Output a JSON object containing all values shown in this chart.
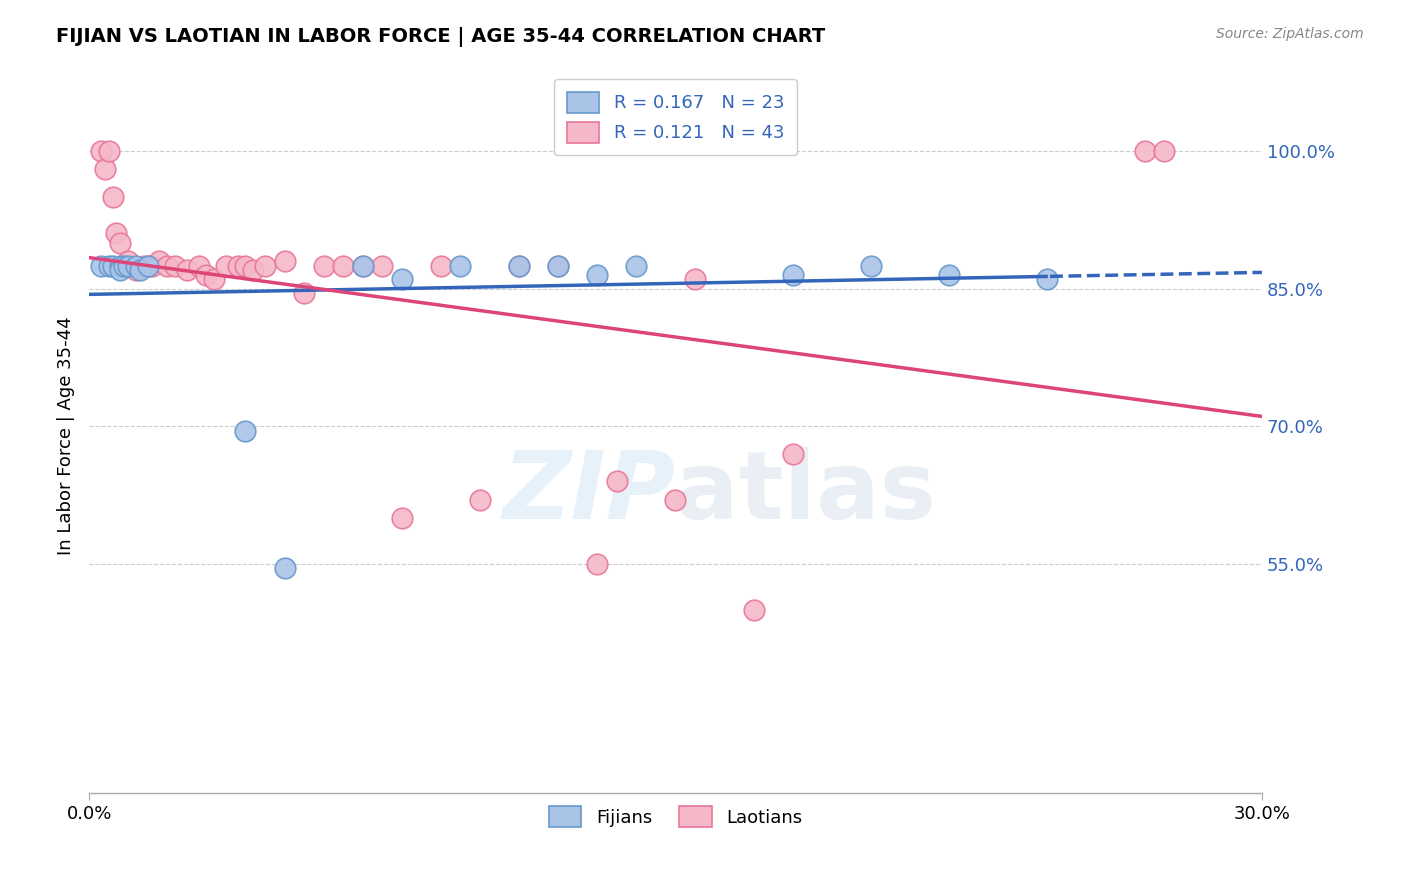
{
  "title": "FIJIAN VS LAOTIAN IN LABOR FORCE | AGE 35-44 CORRELATION CHART",
  "source": "Source: ZipAtlas.com",
  "ylabel": "In Labor Force | Age 35-44",
  "x_min": 0.0,
  "x_max": 0.3,
  "y_min": 0.3,
  "y_max": 1.08,
  "x_tick_labels": [
    "0.0%",
    "30.0%"
  ],
  "x_tick_vals": [
    0.0,
    0.3
  ],
  "y_tick_labels": [
    "100.0%",
    "85.0%",
    "70.0%",
    "55.0%"
  ],
  "y_tick_values": [
    1.0,
    0.85,
    0.7,
    0.55
  ],
  "grid_color": "#cccccc",
  "fijian_color": "#aac4e8",
  "fijian_edge": "#6699cc",
  "laotian_color": "#f5b8c8",
  "laotian_edge": "#e87799",
  "blue_line_color": "#3366bb",
  "pink_line_color": "#dd4477",
  "r_fijian": 0.167,
  "n_fijian": 23,
  "r_laotian": 0.121,
  "n_laotian": 43,
  "legend_color": "#3366bb",
  "fijian_x": [
    0.003,
    0.005,
    0.006,
    0.008,
    0.008,
    0.009,
    0.01,
    0.012,
    0.013,
    0.015,
    0.04,
    0.05,
    0.07,
    0.08,
    0.095,
    0.11,
    0.12,
    0.13,
    0.14,
    0.18,
    0.2,
    0.22,
    0.245
  ],
  "fijian_y": [
    0.875,
    0.875,
    0.875,
    0.875,
    0.87,
    0.875,
    0.875,
    0.875,
    0.87,
    0.875,
    0.695,
    0.545,
    0.875,
    0.86,
    0.875,
    0.875,
    0.875,
    0.865,
    0.875,
    0.865,
    0.875,
    0.865,
    0.86
  ],
  "laotian_x": [
    0.003,
    0.004,
    0.005,
    0.006,
    0.007,
    0.008,
    0.009,
    0.01,
    0.012,
    0.014,
    0.015,
    0.016,
    0.018,
    0.02,
    0.022,
    0.025,
    0.028,
    0.03,
    0.032,
    0.035,
    0.038,
    0.04,
    0.042,
    0.045,
    0.05,
    0.055,
    0.06,
    0.065,
    0.07,
    0.075,
    0.08,
    0.09,
    0.1,
    0.11,
    0.12,
    0.13,
    0.135,
    0.15,
    0.155,
    0.17,
    0.18,
    0.27,
    0.275
  ],
  "laotian_y": [
    1.0,
    0.98,
    1.0,
    0.95,
    0.91,
    0.9,
    0.875,
    0.88,
    0.87,
    0.875,
    0.875,
    0.875,
    0.88,
    0.875,
    0.875,
    0.87,
    0.875,
    0.865,
    0.86,
    0.875,
    0.875,
    0.875,
    0.87,
    0.875,
    0.88,
    0.845,
    0.875,
    0.875,
    0.875,
    0.875,
    0.6,
    0.875,
    0.62,
    0.875,
    0.875,
    0.55,
    0.64,
    0.62,
    0.86,
    0.5,
    0.67,
    1.0,
    1.0
  ],
  "watermark_zip": "ZIP",
  "watermark_atlas": "atlas",
  "background_color": "#ffffff"
}
